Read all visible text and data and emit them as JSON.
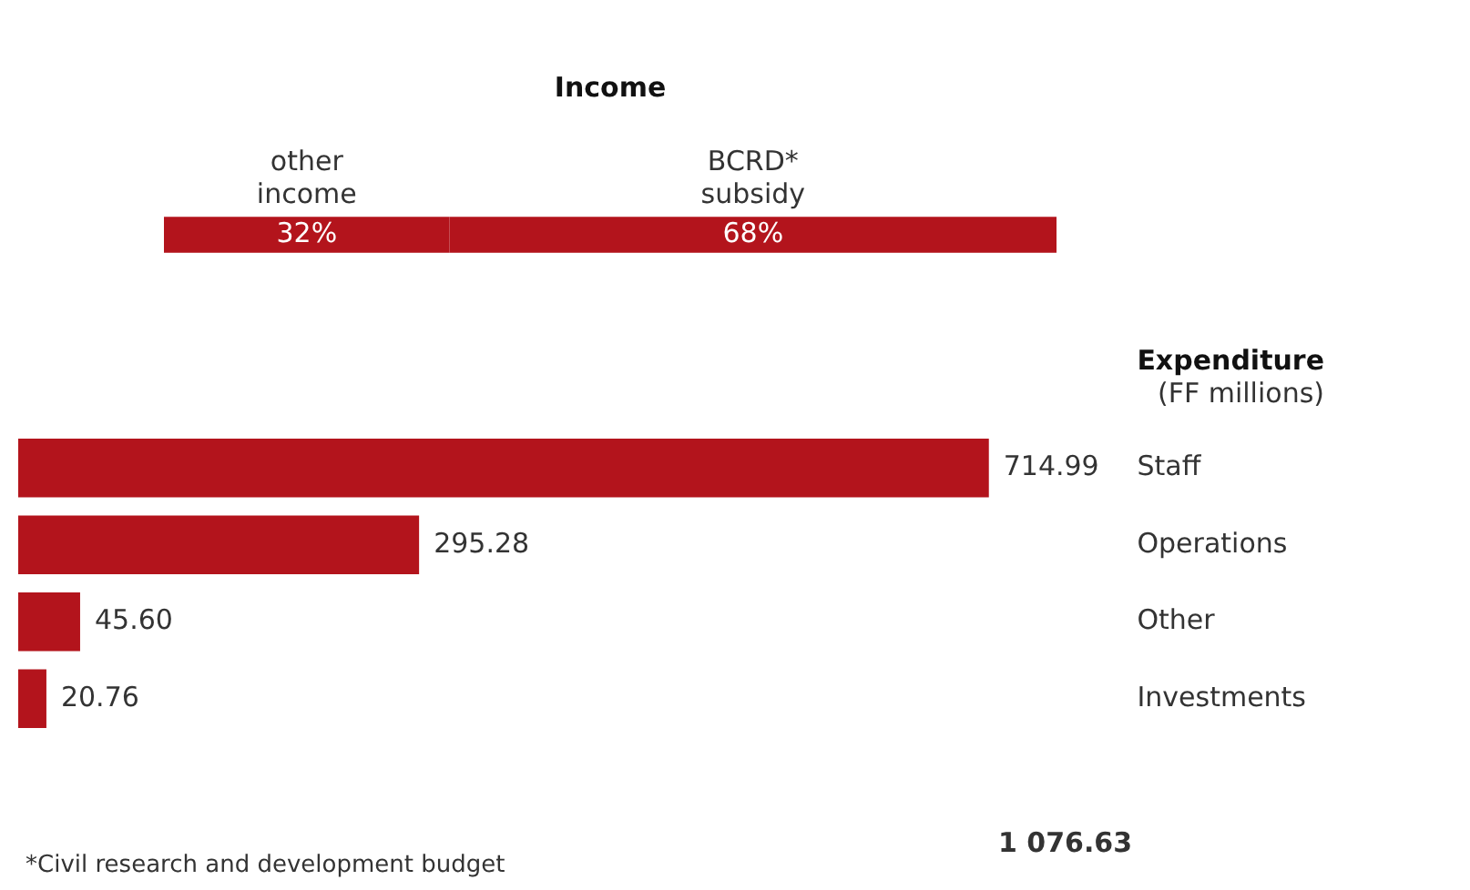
{
  "chart_data": [
    {
      "type": "bar",
      "title": "Income",
      "orientation": "horizontal",
      "stacked": true,
      "categories": [
        null
      ],
      "series": [
        {
          "name": "other income",
          "color": "#b3141c",
          "values": [
            32
          ],
          "value_labels": [
            "32%"
          ]
        },
        {
          "name": "BCRD* subsidy",
          "color": "#b3141c",
          "values": [
            68
          ],
          "value_labels": [
            "68%"
          ]
        }
      ]
    },
    {
      "type": "bar",
      "title": "Expenditure",
      "subtitle": "(FF millions)",
      "orientation": "horizontal",
      "categories": [
        "Staff",
        "Operations",
        "Other",
        "Investments"
      ],
      "values": [
        714.99,
        295.28,
        45.6,
        20.76
      ],
      "value_labels": [
        "714.99",
        "295.28",
        "45.60",
        "20.76"
      ],
      "color": "#b3141c",
      "annotations": [
        "1 076.63",
        "*Civil research and development budget"
      ]
    }
  ]
}
